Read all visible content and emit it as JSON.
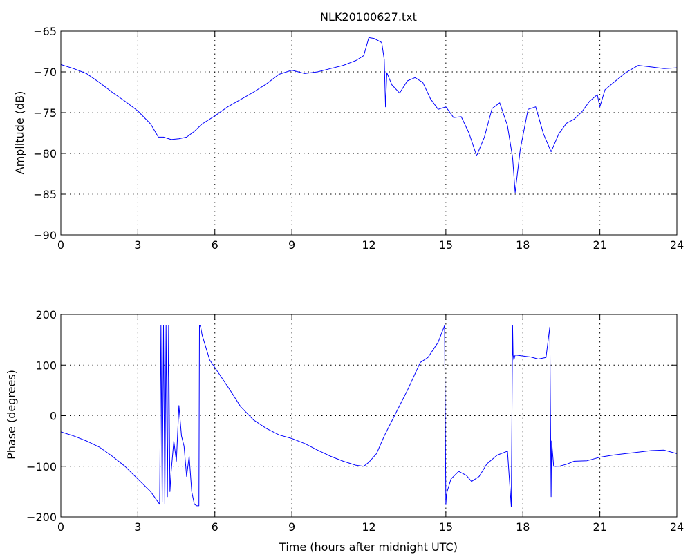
{
  "chart_data": [
    {
      "type": "line",
      "title": "NLK20100627.txt",
      "xlabel": "",
      "ylabel": "Amplitude (dB)",
      "xlim": [
        0,
        24
      ],
      "ylim": [
        -90,
        -65
      ],
      "xticks": [
        0,
        3,
        6,
        9,
        12,
        15,
        18,
        21,
        24
      ],
      "yticks": [
        -90,
        -85,
        -80,
        -75,
        -70,
        -65
      ],
      "xtick_labels": [
        "0",
        "3",
        "6",
        "9",
        "12",
        "15",
        "18",
        "21",
        "24"
      ],
      "ytick_labels": [
        "−90",
        "−85",
        "−80",
        "−75",
        "−70",
        "−65"
      ],
      "grid": true,
      "series": [
        {
          "color": "#0000ff",
          "x": [
            0,
            0.5,
            1,
            1.5,
            2,
            2.5,
            3,
            3.5,
            3.8,
            4,
            4.3,
            4.6,
            4.9,
            5.2,
            5.5,
            6,
            6.5,
            7,
            7.5,
            8,
            8.5,
            9,
            9.5,
            10,
            10.5,
            11,
            11.5,
            11.8,
            12,
            12.2,
            12.5,
            12.6,
            12.65,
            12.7,
            12.9,
            13.2,
            13.5,
            13.8,
            14.1,
            14.4,
            14.7,
            15,
            15.3,
            15.6,
            15.9,
            16.2,
            16.5,
            16.8,
            17.1,
            17.4,
            17.6,
            17.7,
            17.9,
            18.2,
            18.5,
            18.8,
            19.1,
            19.4,
            19.7,
            20,
            20.3,
            20.6,
            20.9,
            21,
            21.2,
            21.5,
            22,
            22.5,
            23,
            23.5,
            24
          ],
          "y": [
            -69.1,
            -69.6,
            -70.2,
            -71.3,
            -72.5,
            -73.6,
            -74.8,
            -76.4,
            -78.0,
            -78.0,
            -78.3,
            -78.2,
            -78.0,
            -77.3,
            -76.4,
            -75.4,
            -74.3,
            -73.4,
            -72.5,
            -71.5,
            -70.3,
            -69.8,
            -70.2,
            -70.0,
            -69.6,
            -69.2,
            -68.6,
            -68.0,
            -65.8,
            -65.9,
            -66.4,
            -68.5,
            -74.3,
            -70.1,
            -71.6,
            -72.6,
            -71.1,
            -70.7,
            -71.3,
            -73.3,
            -74.6,
            -74.3,
            -75.6,
            -75.5,
            -77.5,
            -80.3,
            -78.0,
            -74.5,
            -73.8,
            -76.6,
            -80.5,
            -84.8,
            -79.5,
            -74.6,
            -74.3,
            -77.6,
            -79.8,
            -77.6,
            -76.3,
            -75.8,
            -74.9,
            -73.6,
            -72.8,
            -74.3,
            -72.2,
            -71.4,
            -70.1,
            -69.2,
            -69.4,
            -69.6,
            -69.5
          ]
        }
      ]
    },
    {
      "type": "line",
      "title": "",
      "xlabel": "Time (hours after midnight UTC)",
      "ylabel": "Phase (degrees)",
      "xlim": [
        0,
        24
      ],
      "ylim": [
        -200,
        200
      ],
      "xticks": [
        0,
        3,
        6,
        9,
        12,
        15,
        18,
        21,
        24
      ],
      "yticks": [
        -200,
        -100,
        0,
        100,
        200
      ],
      "xtick_labels": [
        "0",
        "3",
        "6",
        "9",
        "12",
        "15",
        "18",
        "21",
        "24"
      ],
      "ytick_labels": [
        "−200",
        "−100",
        "0",
        "100",
        "200"
      ],
      "grid": true,
      "series": [
        {
          "color": "#0000ff",
          "x": [
            0,
            0.5,
            1,
            1.5,
            2,
            2.5,
            3,
            3.5,
            3.85,
            3.9,
            3.95,
            4.0,
            4.05,
            4.1,
            4.15,
            4.2,
            4.25,
            4.3,
            4.4,
            4.5,
            4.6,
            4.7,
            4.8,
            4.9,
            5.0,
            5.1,
            5.2,
            5.3,
            5.38,
            5.4,
            5.42,
            5.45,
            5.5,
            5.8,
            6.2,
            6.6,
            7,
            7.5,
            8,
            8.5,
            9,
            9.5,
            10,
            10.5,
            11,
            11.5,
            11.8,
            12,
            12.3,
            12.6,
            13,
            13.5,
            14,
            14.3,
            14.7,
            14.95,
            15.0,
            15.02,
            15.05,
            15.2,
            15.5,
            15.8,
            16.0,
            16.3,
            16.6,
            17,
            17.4,
            17.55,
            17.6,
            17.62,
            17.65,
            17.7,
            18,
            18.3,
            18.6,
            18.9,
            19.05,
            19.1,
            19.12,
            19.2,
            19.4,
            19.7,
            20,
            20.5,
            21,
            21.5,
            22,
            22.5,
            23,
            23.5,
            24
          ],
          "y": [
            -32,
            -40,
            -50,
            -62,
            -80,
            -100,
            -125,
            -150,
            -175,
            178,
            -170,
            178,
            -175,
            178,
            -160,
            178,
            -150,
            -110,
            -50,
            -90,
            20,
            -40,
            -60,
            -120,
            -80,
            -150,
            -175,
            -178,
            -178,
            178,
            178,
            175,
            160,
            110,
            80,
            50,
            18,
            -8,
            -25,
            -38,
            -45,
            -55,
            -68,
            -80,
            -90,
            -98,
            -100,
            -92,
            -75,
            -40,
            0,
            50,
            105,
            115,
            145,
            178,
            -176,
            -160,
            -150,
            -125,
            -110,
            -118,
            -130,
            -120,
            -95,
            -78,
            -70,
            -180,
            178,
            120,
            110,
            120,
            118,
            116,
            112,
            115,
            175,
            -160,
            -50,
            -100,
            -100,
            -96,
            -90,
            -89,
            -82,
            -78,
            -75,
            -72,
            -69,
            -68,
            -75
          ]
        }
      ]
    }
  ]
}
